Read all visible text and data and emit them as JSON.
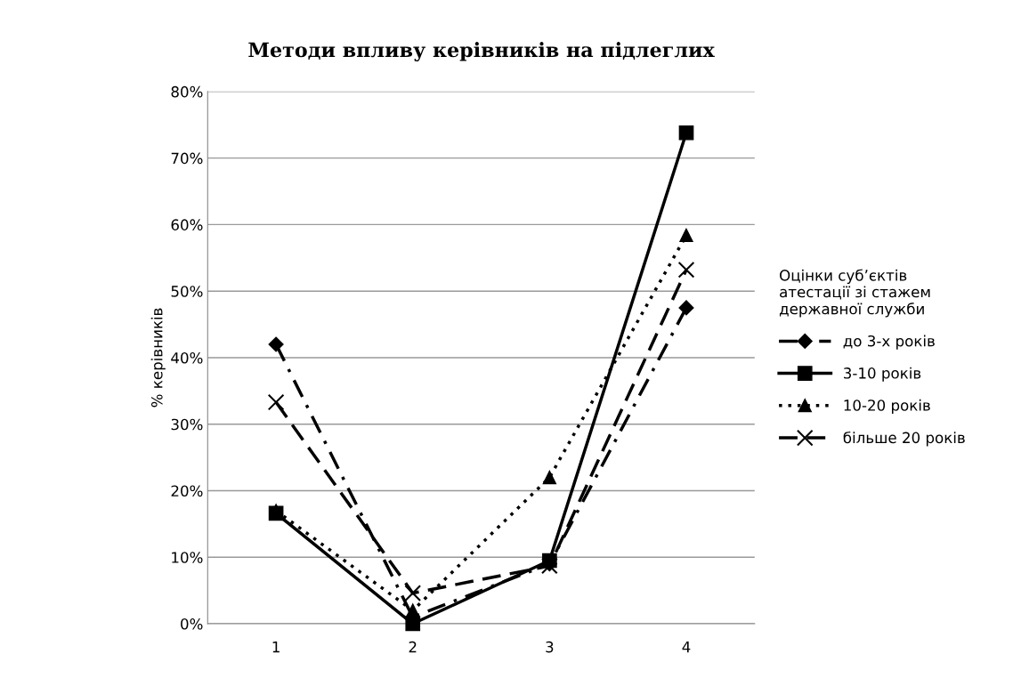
{
  "chart_data": {
    "type": "line",
    "title": "Методи впливу керівників на підлеглих",
    "ylabel": "% керівників",
    "legend_title": "Оцінки суб’єктів\nатестації зі стажем\nдержавної служби",
    "categories": [
      "1",
      "2",
      "3",
      "4"
    ],
    "series": [
      {
        "name": "до 3-х років",
        "color": "#000000",
        "marker": "diamond",
        "line_style": "dashdot",
        "values": [
          42,
          1,
          9,
          47.5
        ]
      },
      {
        "name": "3-10 років",
        "color": "#000000",
        "marker": "square",
        "line_style": "solid",
        "values": [
          16.6,
          0,
          9.5,
          73.8
        ]
      },
      {
        "name": "10-20 років",
        "color": "#000000",
        "marker": "triangle",
        "line_style": "dotted",
        "values": [
          17,
          2,
          22,
          58.4
        ]
      },
      {
        "name": "більше 20 років",
        "color": "#000000",
        "marker": "cross",
        "line_style": "dashed",
        "values": [
          33.3,
          4.6,
          8.7,
          53.2
        ]
      }
    ],
    "ylim": [
      0,
      80
    ],
    "yticks": [
      {
        "value": 0,
        "label": "0%"
      },
      {
        "value": 10,
        "label": "10%"
      },
      {
        "value": 20,
        "label": "20%"
      },
      {
        "value": 30,
        "label": "30%"
      },
      {
        "value": 40,
        "label": "40%"
      },
      {
        "value": 50,
        "label": "50%"
      },
      {
        "value": 60,
        "label": "60%"
      },
      {
        "value": 70,
        "label": "70%"
      },
      {
        "value": 80,
        "label": "80%"
      }
    ],
    "grid": "y",
    "legend": "right"
  }
}
